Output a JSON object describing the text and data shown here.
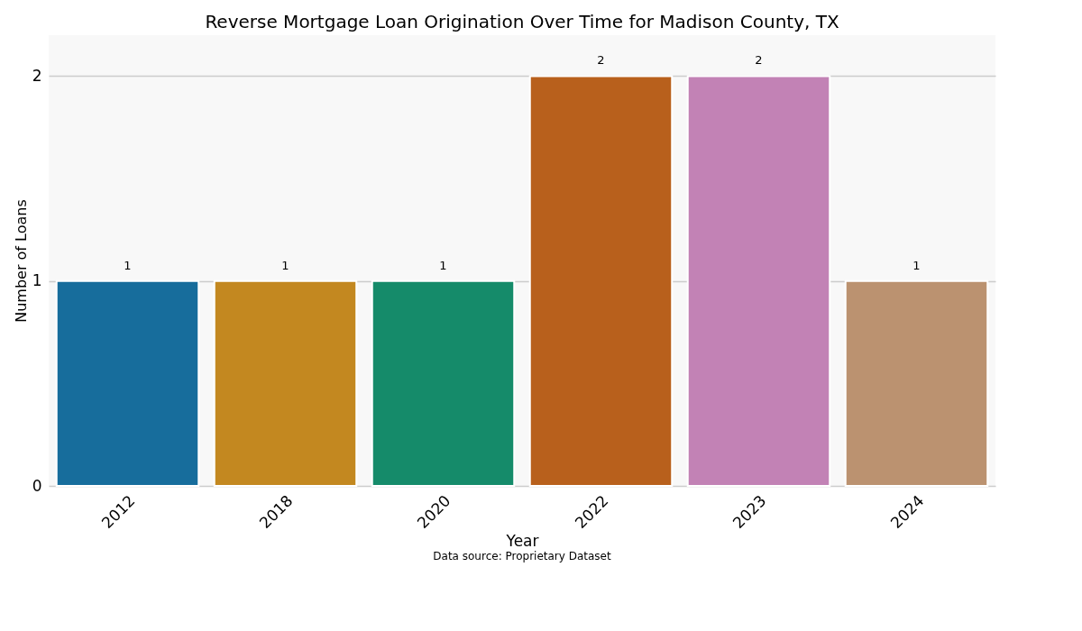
{
  "chart_data": {
    "type": "bar",
    "title": "Reverse Mortgage Loan Origination Over Time for Madison County, TX",
    "xlabel": "Year",
    "ylabel": "Number of Loans",
    "categories": [
      "2012",
      "2018",
      "2020",
      "2022",
      "2023",
      "2024"
    ],
    "values": [
      1,
      1,
      1,
      2,
      2,
      1
    ],
    "colors": [
      "#176d9c",
      "#c38820",
      "#158b6a",
      "#b8601c",
      "#c282b5",
      "#bb9270"
    ],
    "ylim": [
      0,
      2.2
    ],
    "yticks": [
      0,
      1,
      2
    ],
    "grid": "y",
    "data_labels": true,
    "annotations": [
      "Data source: Proprietary Dataset"
    ]
  }
}
